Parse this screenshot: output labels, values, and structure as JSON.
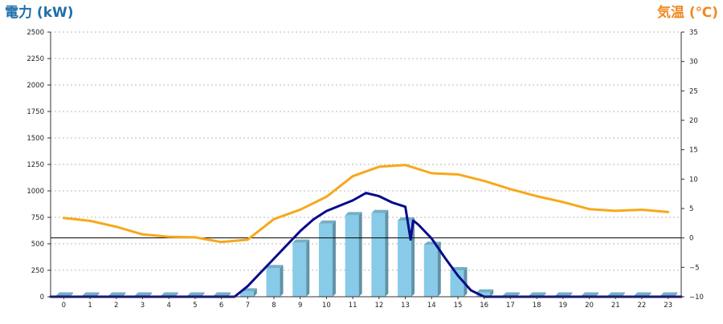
{
  "chart_data": {
    "type": "bar+line",
    "y_left_title": "電力 (kW)",
    "y_right_title": "気温 (℃)",
    "y_left_range": [
      0,
      2500
    ],
    "y_left_ticks": [
      "0",
      "250",
      "500",
      "750",
      "1000",
      "1250",
      "1500",
      "1750",
      "2000",
      "2250",
      "2500"
    ],
    "y_right_range": [
      -10,
      35
    ],
    "y_right_ticks": [
      "−10",
      "−5",
      "0",
      "5",
      "10",
      "15",
      "20",
      "25",
      "30",
      "35"
    ],
    "categories": [
      "0",
      "1",
      "2",
      "3",
      "4",
      "5",
      "6",
      "7",
      "8",
      "9",
      "10",
      "11",
      "12",
      "13",
      "14",
      "15",
      "16",
      "17",
      "18",
      "19",
      "20",
      "21",
      "22",
      "23"
    ],
    "grid": true,
    "legend": "none",
    "bars": {
      "name": "",
      "color": "#87cbe8",
      "values": [
        0,
        0,
        0,
        0,
        0,
        0,
        0,
        50,
        270,
        510,
        690,
        770,
        790,
        720,
        490,
        250,
        40,
        0,
        0,
        0,
        0,
        0,
        0,
        0
      ]
    },
    "power_line": {
      "name": "",
      "color": "#0a0a8c",
      "axis": "left",
      "x": [
        -0.5,
        6.5,
        7,
        7.5,
        8,
        8.5,
        9,
        9.5,
        10,
        10.5,
        11,
        11.5,
        12,
        12.5,
        13,
        13.2,
        13.3,
        13.5,
        14,
        14.5,
        15,
        15.5,
        16,
        23.5
      ],
      "y": [
        0,
        0,
        100,
        230,
        360,
        490,
        620,
        730,
        810,
        860,
        910,
        980,
        950,
        890,
        850,
        540,
        720,
        680,
        550,
        370,
        200,
        60,
        0,
        0
      ]
    },
    "temperature_line": {
      "name": "",
      "color": "#f7a81b",
      "axis": "right",
      "x": [
        0,
        1,
        2,
        3,
        4,
        5,
        6,
        7,
        8,
        9,
        10,
        11,
        12,
        13,
        14,
        15,
        16,
        17,
        18,
        19,
        20,
        21,
        22,
        23
      ],
      "y": [
        3.4,
        2.9,
        1.9,
        0.6,
        0.2,
        0.1,
        -0.7,
        -0.3,
        3.2,
        4.8,
        7.0,
        10.5,
        12.1,
        12.4,
        11.0,
        10.8,
        9.7,
        8.3,
        7.1,
        6.1,
        4.9,
        4.6,
        4.8,
        4.4
      ]
    },
    "reference_line": {
      "axis": "right",
      "value": 0,
      "color": "#000000"
    }
  }
}
